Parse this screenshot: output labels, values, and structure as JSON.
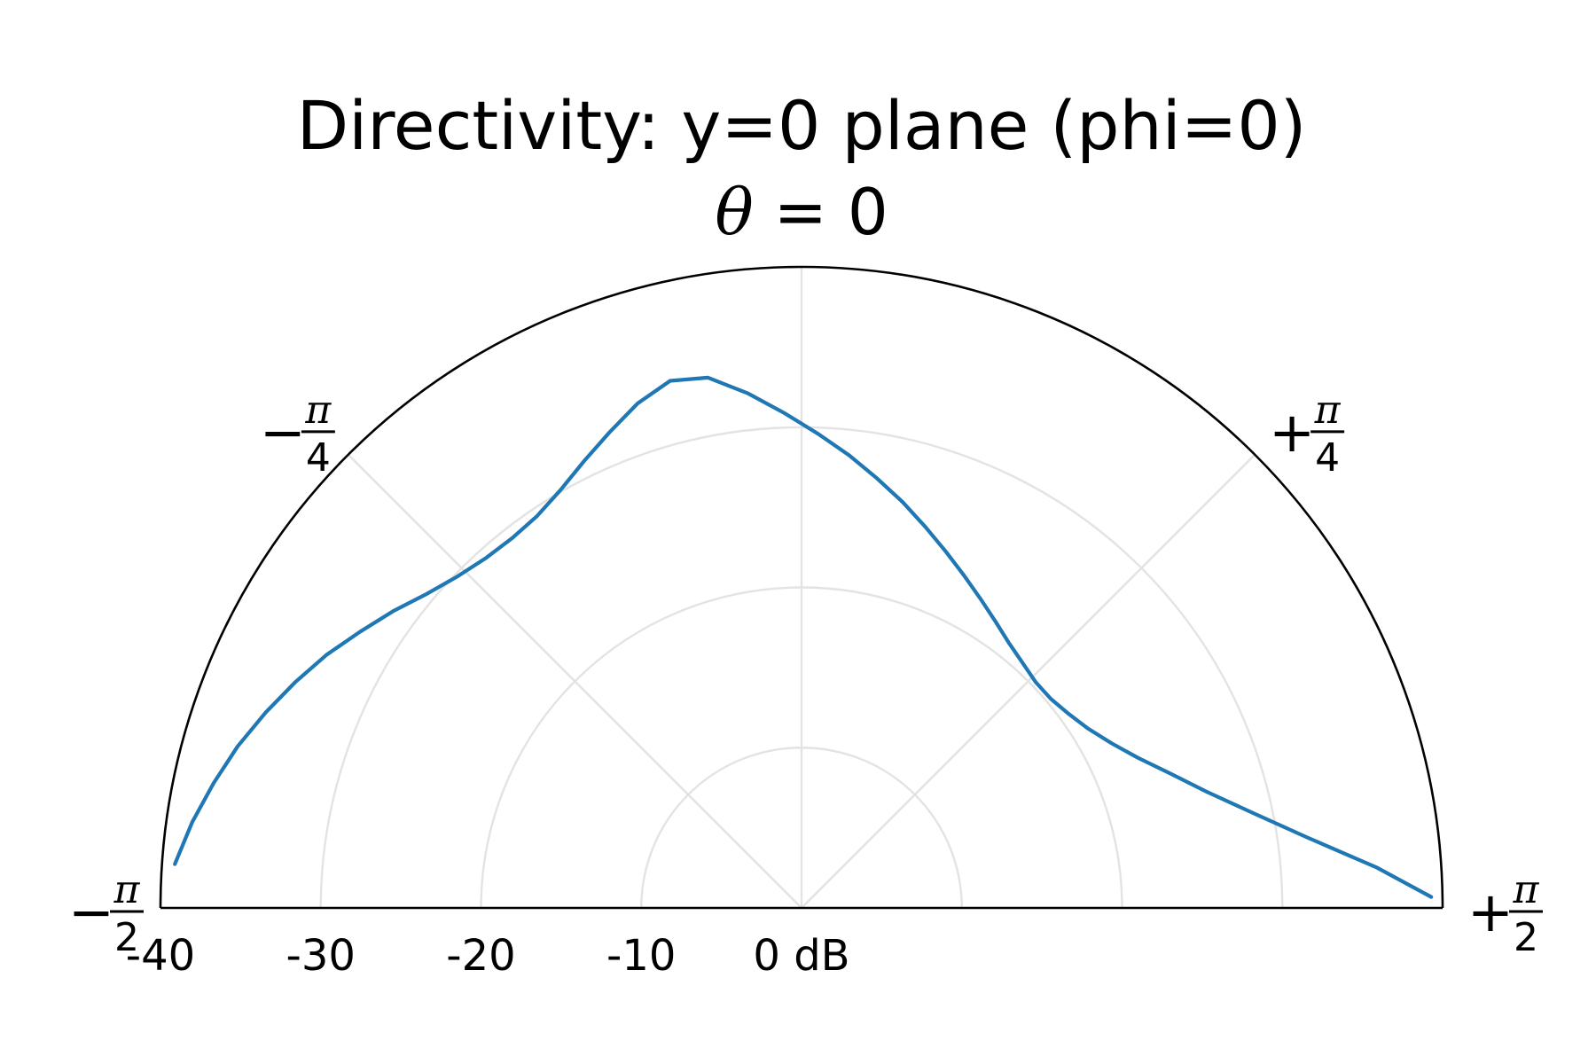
{
  "chart_data": {
    "type": "line",
    "projection": "polar-half",
    "title": "Directivity: y=0 plane (phi=0)",
    "theta_zero_label": {
      "symbol": "θ",
      "rest": " = 0"
    },
    "angle_ticks": [
      {
        "deg": -90,
        "sign": "−",
        "num": "π",
        "den": "2"
      },
      {
        "deg": -45,
        "sign": "−",
        "num": "π",
        "den": "4"
      },
      {
        "deg": 45,
        "sign": "+",
        "num": "π",
        "den": "4"
      },
      {
        "deg": 90,
        "sign": "+",
        "num": "π",
        "den": "2"
      }
    ],
    "radial_ticks": [
      {
        "value": 0,
        "label": "0 dB"
      },
      {
        "value": -10,
        "label": "-10"
      },
      {
        "value": -20,
        "label": "-20"
      },
      {
        "value": -30,
        "label": "-30"
      },
      {
        "value": -40,
        "label": "-40"
      }
    ],
    "r_range": [
      -40,
      0
    ],
    "theta_range_deg": [
      -90,
      90
    ],
    "grid": true,
    "series_color": "#1f77b4",
    "series": [
      {
        "theta_deg": [
          -86,
          -82,
          -78,
          -74,
          -70,
          -66,
          -62,
          -58,
          -54,
          -50,
          -46,
          -42,
          -38,
          -34,
          -30,
          -26,
          -22,
          -18,
          -14,
          -10,
          -6,
          -2,
          2,
          6,
          10,
          14,
          18,
          22,
          26,
          30,
          34,
          38,
          42,
          46,
          50,
          54,
          58,
          62,
          66,
          70,
          74,
          78,
          82,
          86,
          89
        ],
        "r_db": [
          -39.2,
          -38.4,
          -37.5,
          -36.6,
          -35.6,
          -34.6,
          -33.6,
          -32.5,
          -31.5,
          -30.5,
          -29.8,
          -29.4,
          -29.3,
          -29.5,
          -30.1,
          -31.0,
          -32.0,
          -33.1,
          -33.9,
          -33.6,
          -32.3,
          -30.9,
          -29.6,
          -28.4,
          -27.2,
          -26.1,
          -25.0,
          -24.0,
          -23.1,
          -22.3,
          -21.6,
          -21.0,
          -20.6,
          -20.3,
          -20.3,
          -20.6,
          -21.1,
          -21.9,
          -23.0,
          -24.5,
          -26.3,
          -28.7,
          -31.8,
          -36.0,
          -39.3
        ]
      }
    ]
  }
}
